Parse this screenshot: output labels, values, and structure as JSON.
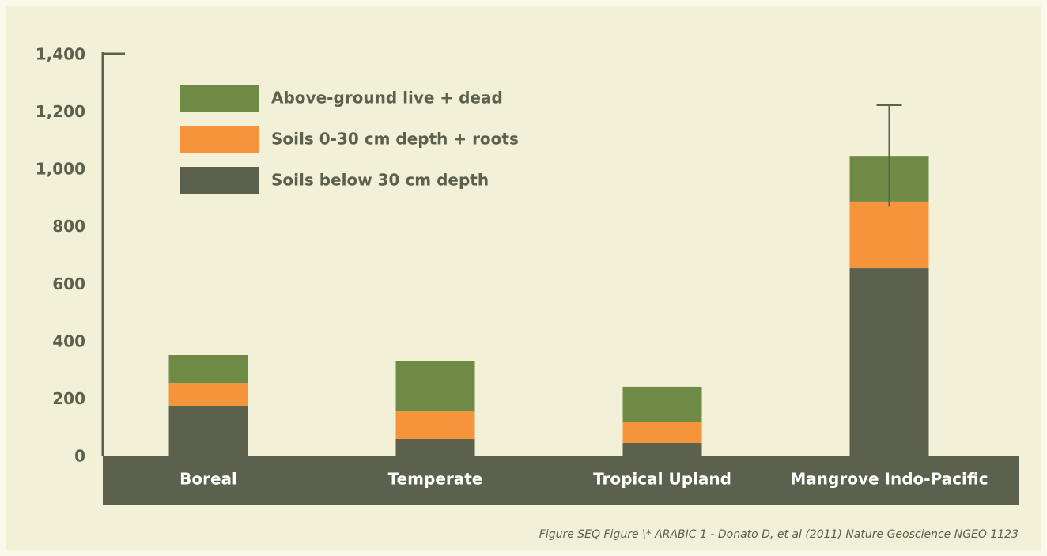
{
  "chart_data": {
    "type": "stacked_bar",
    "categories": [
      "Boreal",
      "Temperate",
      "Tropical Upland",
      "Mangrove Indo-Pacific"
    ],
    "series": [
      {
        "name": "Soils below 30 cm depth",
        "color": "#5b614d",
        "values": [
          174,
          58,
          44,
          653
        ]
      },
      {
        "name": "Soils 0-30 cm depth + roots",
        "color": "#f5943a",
        "values": [
          79,
          96,
          74,
          232
        ]
      },
      {
        "name": "Above-ground live + dead",
        "color": "#6f8a45",
        "values": [
          97,
          174,
          122,
          159
        ],
        "errors": [
          null,
          null,
          null,
          177
        ]
      }
    ],
    "ylim": [
      0,
      1400
    ],
    "yticks": [
      0,
      200,
      400,
      600,
      800,
      {
        "value": 1000,
        "label": "1,000"
      },
      {
        "value": 1200,
        "label": "1,200"
      },
      {
        "value": 1400,
        "label": "1,400"
      }
    ],
    "caption": "Figure SEQ Figure \\* ARABIC 1 - Donato D, et al (2011) Nature Geoscience NGEO 1123"
  }
}
